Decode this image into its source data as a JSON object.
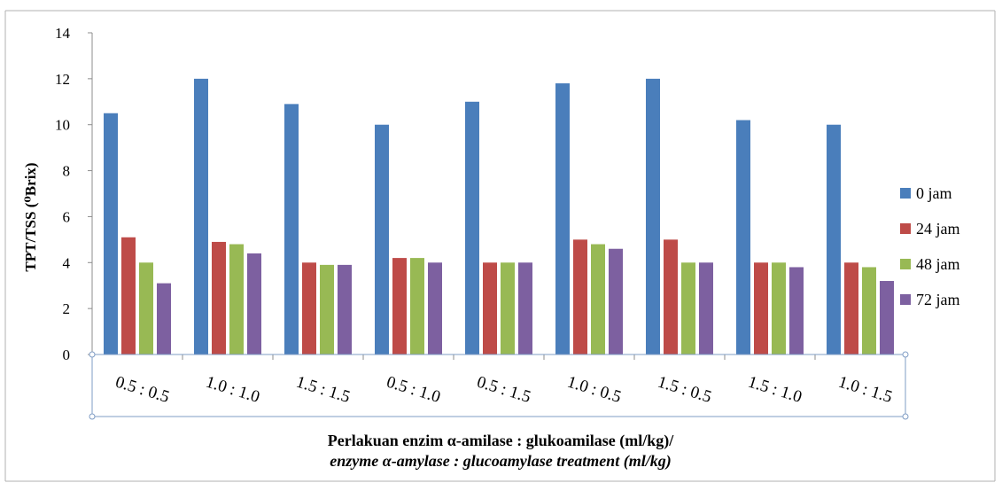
{
  "chart_data": {
    "type": "bar",
    "title": "",
    "ylabel": "TPT/TSS (⁰Brix)",
    "xlabel": "Perlakuan enzim α-amilase : glukoamilase (ml/kg)/",
    "xlabel_en": "enzyme α-amylase : glucoamylase treatment (ml/kg)",
    "ylim": [
      0,
      14
    ],
    "yticks": [
      0,
      2,
      4,
      6,
      8,
      10,
      12,
      14
    ],
    "grid": false,
    "legend_position": "right",
    "categories": [
      "0.5 : 0.5",
      "1.0 : 1.0",
      "1.5 : 1.5",
      "0.5 : 1.0",
      "0.5 : 1.5",
      "1.0 : 0.5",
      "1.5 : 0.5",
      "1.5 : 1.0",
      "1.0 : 1.5"
    ],
    "series": [
      {
        "name": "0 jam",
        "color": "#4a7ebb",
        "values": [
          10.5,
          12.0,
          10.9,
          10.0,
          11.0,
          11.8,
          12.0,
          10.2,
          10.0
        ]
      },
      {
        "name": "24 jam",
        "color": "#be4b48",
        "values": [
          5.1,
          4.9,
          4.0,
          4.2,
          4.0,
          5.0,
          5.0,
          4.0,
          4.0
        ]
      },
      {
        "name": "48 jam",
        "color": "#98b954",
        "values": [
          4.0,
          4.8,
          3.9,
          4.2,
          4.0,
          4.8,
          4.0,
          4.0,
          3.8
        ]
      },
      {
        "name": "72 jam",
        "color": "#7d60a0",
        "values": [
          3.1,
          4.4,
          3.9,
          4.0,
          4.0,
          4.6,
          4.0,
          3.8,
          3.2
        ]
      }
    ]
  }
}
